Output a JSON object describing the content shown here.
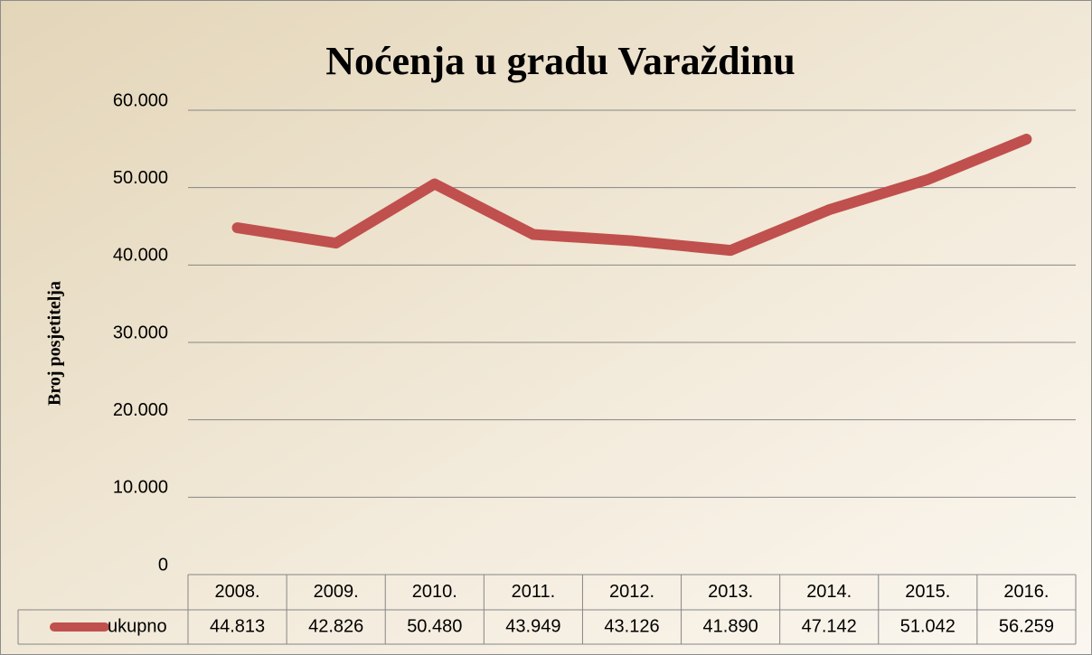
{
  "chart_data": {
    "type": "line",
    "title": "Noćenja u gradu Varaždinu",
    "y_label": "Broj posjetitelja",
    "categories": [
      "2008.",
      "2009.",
      "2010.",
      "2011.",
      "2012.",
      "2013.",
      "2014.",
      "2015.",
      "2016."
    ],
    "series": [
      {
        "name": "ukupno",
        "color": "#c0504d",
        "values": [
          44813,
          42826,
          50480,
          43949,
          43126,
          41890,
          47142,
          51042,
          56259
        ],
        "value_labels": [
          "44.813",
          "42.826",
          "50.480",
          "43.949",
          "43.126",
          "41.890",
          "47.142",
          "51.042",
          "56.259"
        ]
      }
    ],
    "ylim": [
      0,
      60000
    ],
    "yticks": [
      0,
      {
        "value": 10000,
        "label": "10.000"
      },
      {
        "value": 20000,
        "label": "20.000"
      },
      {
        "value": 30000,
        "label": "30.000"
      },
      {
        "value": 40000,
        "label": "40.000"
      },
      {
        "value": 50000,
        "label": "50.000"
      },
      {
        "value": 60000,
        "label": "60.000"
      }
    ],
    "grid": true,
    "legend": "bottom"
  }
}
